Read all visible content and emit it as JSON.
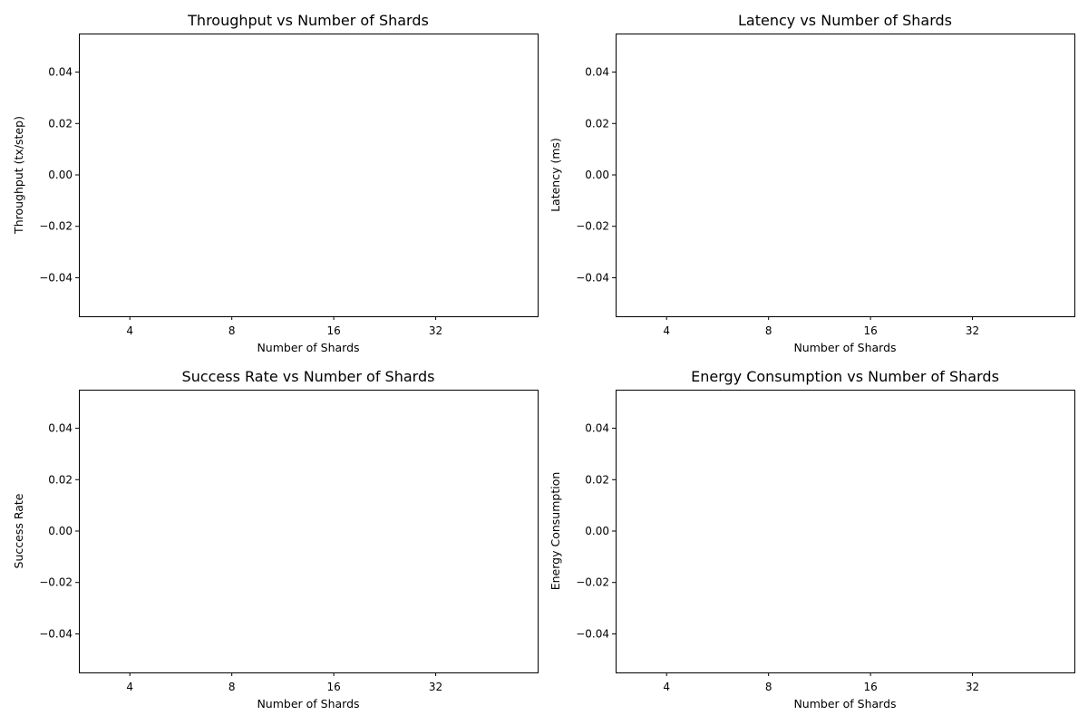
{
  "chart_data": [
    {
      "type": "bar",
      "title": "Throughput vs Number of Shards",
      "xlabel": "Number of Shards",
      "ylabel": "Throughput (tx/step)",
      "categories": [
        "4",
        "8",
        "16",
        "32"
      ],
      "series": [],
      "ylim": [
        -0.055,
        0.055
      ],
      "yticks": [
        -0.04,
        -0.02,
        0.0,
        0.02,
        0.04
      ],
      "ytick_labels": [
        "−0.04",
        "−0.02",
        "0.00",
        "0.02",
        "0.04"
      ],
      "grid": false
    },
    {
      "type": "bar",
      "title": "Latency vs Number of Shards",
      "xlabel": "Number of Shards",
      "ylabel": "Latency (ms)",
      "categories": [
        "4",
        "8",
        "16",
        "32"
      ],
      "series": [],
      "ylim": [
        -0.055,
        0.055
      ],
      "yticks": [
        -0.04,
        -0.02,
        0.0,
        0.02,
        0.04
      ],
      "ytick_labels": [
        "−0.04",
        "−0.02",
        "0.00",
        "0.02",
        "0.04"
      ],
      "grid": false
    },
    {
      "type": "bar",
      "title": "Success Rate vs Number of Shards",
      "xlabel": "Number of Shards",
      "ylabel": "Success Rate",
      "categories": [
        "4",
        "8",
        "16",
        "32"
      ],
      "series": [],
      "ylim": [
        -0.055,
        0.055
      ],
      "yticks": [
        -0.04,
        -0.02,
        0.0,
        0.02,
        0.04
      ],
      "ytick_labels": [
        "−0.04",
        "−0.02",
        "0.00",
        "0.02",
        "0.04"
      ],
      "grid": false
    },
    {
      "type": "bar",
      "title": "Energy Consumption vs Number of Shards",
      "xlabel": "Number of Shards",
      "ylabel": "Energy Consumption",
      "categories": [
        "4",
        "8",
        "16",
        "32"
      ],
      "series": [],
      "ylim": [
        -0.055,
        0.055
      ],
      "yticks": [
        -0.04,
        -0.02,
        0.0,
        0.02,
        0.04
      ],
      "ytick_labels": [
        "−0.04",
        "−0.02",
        "0.00",
        "0.02",
        "0.04"
      ],
      "grid": false
    }
  ]
}
